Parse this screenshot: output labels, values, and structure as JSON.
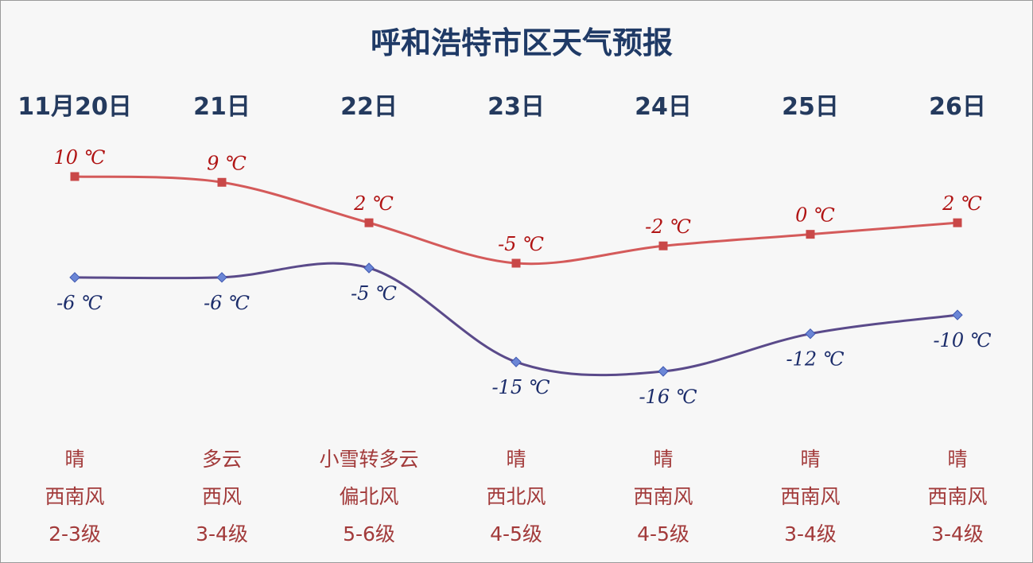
{
  "chart_data": {
    "type": "line",
    "title": "呼和浩特市区天气预报",
    "categories": [
      "11月20日",
      "21日",
      "22日",
      "23日",
      "24日",
      "25日",
      "26日"
    ],
    "series": [
      {
        "values": [
          10,
          9,
          2,
          -5,
          -2,
          0,
          2
        ],
        "labels": [
          "10 ℃",
          "9 ℃",
          "2 ℃",
          "-5 ℃",
          "-2 ℃",
          "0 ℃",
          "2 ℃"
        ],
        "color": "#d45a5a",
        "marker_color": "#c94848"
      },
      {
        "values": [
          -6,
          -6,
          -5,
          -15,
          -16,
          -12,
          -10
        ],
        "labels": [
          "-6 ℃",
          "-6 ℃",
          "-5 ℃",
          "-15 ℃",
          "-16 ℃",
          "-12 ℃",
          "-10 ℃"
        ],
        "color": "#5a4a8a",
        "marker_color": "#6b86d6"
      }
    ],
    "weather": [
      "晴",
      "多云",
      "小雪转多云",
      "晴",
      "晴",
      "晴",
      "晴"
    ],
    "wind_direction": [
      "西南风",
      "西风",
      "偏北风",
      "西北风",
      "西南风",
      "西南风",
      "西南风"
    ],
    "wind_level": [
      "2-3级",
      "3-4级",
      "5-6级",
      "4-5级",
      "4-5级",
      "3-4级",
      "3-4级"
    ],
    "grid": false,
    "smooth": true
  }
}
